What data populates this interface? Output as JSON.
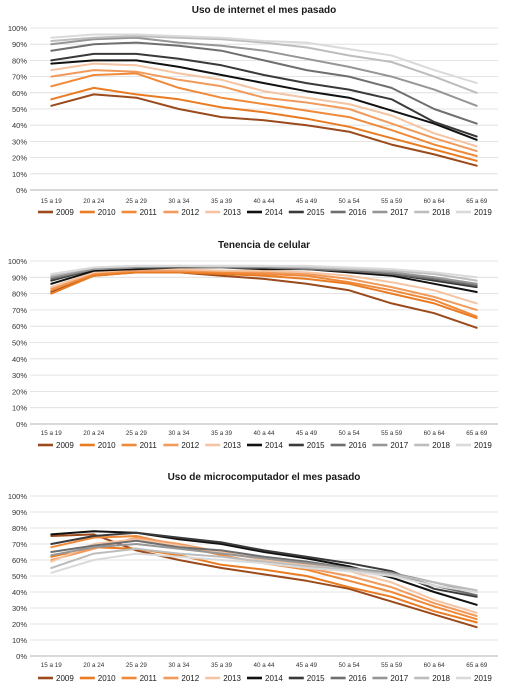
{
  "colors": {
    "2009": "#9a4a1c",
    "2010": "#e97c23",
    "2011": "#ef8a3a",
    "2012": "#f09a5c",
    "2013": "#f5c4a2",
    "2014": "#111111",
    "2015": "#3a3a3a",
    "2016": "#6f6f6f",
    "2017": "#969696",
    "2018": "#bdbdbd",
    "2019": "#dadada"
  },
  "chart_data": [
    {
      "type": "line",
      "title": "Uso de internet el mes pasado",
      "categories": [
        "15 a 19",
        "20 a 24",
        "25 a 29",
        "30 a 34",
        "35 a 39",
        "40 a 44",
        "45 a 49",
        "50 a 54",
        "55 a 59",
        "60 a 64",
        "65 a 69"
      ],
      "y_ticks": [
        "0%",
        "10%",
        "20%",
        "30%",
        "40%",
        "50%",
        "60%",
        "70%",
        "80%",
        "90%",
        "100%"
      ],
      "ylim": [
        0,
        100
      ],
      "grid": true,
      "legend": "bottom",
      "series": [
        {
          "name": "2009",
          "values": [
            52,
            59,
            57,
            50,
            45,
            43,
            40,
            36,
            28,
            22,
            15
          ]
        },
        {
          "name": "2010",
          "values": [
            56,
            63,
            59,
            56,
            51,
            48,
            44,
            39,
            32,
            25,
            18
          ]
        },
        {
          "name": "2011",
          "values": [
            64,
            71,
            72,
            63,
            57,
            53,
            49,
            45,
            37,
            28,
            21
          ]
        },
        {
          "name": "2012",
          "values": [
            70,
            74,
            73,
            68,
            64,
            57,
            54,
            50,
            41,
            32,
            24
          ]
        },
        {
          "name": "2013",
          "values": [
            74,
            78,
            77,
            72,
            68,
            61,
            57,
            53,
            46,
            35,
            27
          ]
        },
        {
          "name": "2014",
          "values": [
            78,
            80,
            80,
            76,
            71,
            66,
            61,
            57,
            49,
            41,
            31
          ]
        },
        {
          "name": "2015",
          "values": [
            80,
            84,
            84,
            81,
            77,
            71,
            66,
            62,
            56,
            42,
            33
          ]
        },
        {
          "name": "2016",
          "values": [
            86,
            90,
            91,
            89,
            86,
            80,
            74,
            70,
            63,
            50,
            41
          ]
        },
        {
          "name": "2017",
          "values": [
            90,
            93,
            94,
            91,
            89,
            86,
            81,
            76,
            70,
            62,
            52
          ]
        },
        {
          "name": "2018",
          "values": [
            92,
            94,
            95,
            94,
            93,
            91,
            88,
            83,
            79,
            70,
            60
          ]
        },
        {
          "name": "2019",
          "values": [
            94,
            96,
            96,
            95,
            94,
            92,
            91,
            87,
            83,
            74,
            66
          ]
        }
      ]
    },
    {
      "type": "line",
      "title": "Tenencia de celular",
      "categories": [
        "15 a 19",
        "20 a 24",
        "25 a 29",
        "30 a 34",
        "35 a 39",
        "40 a 44",
        "45 a 49",
        "50 a 54",
        "55 a 59",
        "60 a 64",
        "65 a 69"
      ],
      "y_ticks": [
        "0%",
        "10%",
        "20%",
        "30%",
        "40%",
        "50%",
        "60%",
        "70%",
        "80%",
        "90%",
        "100%"
      ],
      "ylim": [
        0,
        100
      ],
      "grid": true,
      "legend": "bottom",
      "series": [
        {
          "name": "2009",
          "values": [
            81,
            91,
            93,
            93,
            91,
            89,
            86,
            82,
            74,
            68,
            59
          ]
        },
        {
          "name": "2010",
          "values": [
            80,
            91,
            93,
            93,
            92,
            91,
            89,
            86,
            80,
            74,
            65
          ]
        },
        {
          "name": "2011",
          "values": [
            82,
            92,
            94,
            94,
            93,
            92,
            91,
            87,
            82,
            76,
            66
          ]
        },
        {
          "name": "2012",
          "values": [
            83,
            93,
            94,
            94,
            94,
            93,
            92,
            89,
            84,
            78,
            70
          ]
        },
        {
          "name": "2013",
          "values": [
            84,
            93,
            95,
            95,
            94,
            94,
            93,
            91,
            87,
            82,
            74
          ]
        },
        {
          "name": "2014",
          "values": [
            86,
            94,
            95,
            96,
            96,
            95,
            95,
            93,
            91,
            86,
            81
          ]
        },
        {
          "name": "2015",
          "values": [
            88,
            95,
            96,
            96,
            96,
            96,
            95,
            94,
            92,
            88,
            84
          ]
        },
        {
          "name": "2016",
          "values": [
            89,
            95,
            96,
            96,
            96,
            96,
            95,
            94,
            92,
            89,
            85
          ]
        },
        {
          "name": "2017",
          "values": [
            90,
            95,
            96,
            97,
            96,
            96,
            96,
            95,
            93,
            90,
            86
          ]
        },
        {
          "name": "2018",
          "values": [
            91,
            96,
            97,
            97,
            97,
            97,
            96,
            95,
            94,
            92,
            88
          ]
        },
        {
          "name": "2019",
          "values": [
            92,
            96,
            97,
            97,
            97,
            97,
            97,
            96,
            95,
            93,
            90
          ]
        }
      ]
    },
    {
      "type": "line",
      "title": "Uso de microcomputador el mes pasado",
      "categories": [
        "15 a 19",
        "20 a 24",
        "25 a 29",
        "30 a 34",
        "35 a 39",
        "40 a 44",
        "45 a 49",
        "50 a 54",
        "55 a 59",
        "60 a 64",
        "65 a 69"
      ],
      "y_ticks": [
        "0%",
        "10%",
        "20%",
        "30%",
        "40%",
        "50%",
        "60%",
        "70%",
        "80%",
        "90%",
        "100%"
      ],
      "ylim": [
        0,
        100
      ],
      "grid": true,
      "legend": "bottom",
      "series": [
        {
          "name": "2009",
          "values": [
            75,
            76,
            66,
            60,
            55,
            51,
            47,
            42,
            34,
            26,
            18
          ]
        },
        {
          "name": "2010",
          "values": [
            62,
            68,
            67,
            63,
            57,
            54,
            50,
            43,
            37,
            28,
            21
          ]
        },
        {
          "name": "2011",
          "values": [
            68,
            74,
            75,
            69,
            63,
            58,
            54,
            47,
            40,
            31,
            23
          ]
        },
        {
          "name": "2012",
          "values": [
            60,
            67,
            74,
            70,
            65,
            60,
            55,
            50,
            43,
            33,
            25
          ]
        },
        {
          "name": "2013",
          "values": [
            59,
            70,
            73,
            69,
            65,
            60,
            57,
            53,
            46,
            35,
            27
          ]
        },
        {
          "name": "2014",
          "values": [
            76,
            78,
            77,
            73,
            70,
            65,
            61,
            56,
            49,
            40,
            32
          ]
        },
        {
          "name": "2015",
          "values": [
            70,
            75,
            77,
            74,
            71,
            66,
            62,
            58,
            53,
            42,
            37
          ]
        },
        {
          "name": "2016",
          "values": [
            65,
            69,
            72,
            68,
            66,
            62,
            59,
            55,
            51,
            44,
            38
          ]
        },
        {
          "name": "2017",
          "values": [
            63,
            68,
            70,
            67,
            64,
            61,
            58,
            55,
            52,
            46,
            40
          ]
        },
        {
          "name": "2018",
          "values": [
            55,
            64,
            67,
            64,
            62,
            59,
            56,
            54,
            51,
            46,
            41
          ]
        },
        {
          "name": "2019",
          "values": [
            52,
            60,
            64,
            62,
            60,
            58,
            55,
            53,
            50,
            44,
            40
          ]
        }
      ]
    }
  ]
}
